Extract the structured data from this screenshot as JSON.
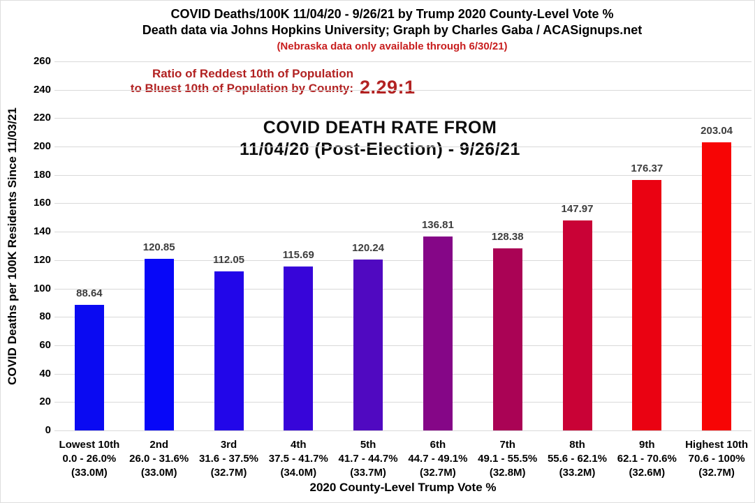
{
  "header": {
    "title_line1": "COVID Deaths/100K 11/04/20 - 9/26/21 by Trump 2020 County-Level Vote %",
    "title_line2": "Death data via Johns Hopkins University; Graph by Charles Gaba / ACASignups.net",
    "note": "(Nebraska data only available through 6/30/21)",
    "note_color": "#c81e1e"
  },
  "ratio": {
    "line1": "Ratio of Reddest 10th of Population",
    "line2": "to Bluest 10th of Population by County:",
    "value": "2.29:1",
    "color": "#b22222"
  },
  "chart_data": {
    "type": "bar",
    "title_line1": "COVID DEATH RATE FROM",
    "title_line2": "11/04/20 (Post-Election) - 9/26/21",
    "ylabel": "COVID Deaths per 100K Residents Since 11/03/21",
    "xlabel": "2020 County-Level Trump Vote %",
    "ylim": [
      0,
      260
    ],
    "ytick_step": 20,
    "grid": true,
    "grid_color": "#d9d9d9",
    "legend": "none",
    "categories": [
      [
        "Lowest 10th",
        "0.0 - 26.0%",
        "(33.0M)"
      ],
      [
        "2nd",
        "26.0 - 31.6%",
        "(33.0M)"
      ],
      [
        "3rd",
        "31.6 - 37.5%",
        "(32.7M)"
      ],
      [
        "4th",
        "37.5 - 41.7%",
        "(34.0M)"
      ],
      [
        "5th",
        "41.7 - 44.7%",
        "(33.7M)"
      ],
      [
        "6th",
        "44.7 - 49.1%",
        "(32.7M)"
      ],
      [
        "7th",
        "49.1 - 55.5%",
        "(32.8M)"
      ],
      [
        "8th",
        "55.6 - 62.1%",
        "(33.2M)"
      ],
      [
        "9th",
        "62.1 - 70.6%",
        "(32.6M)"
      ],
      [
        "Highest 10th",
        "70.6 - 100%",
        "(32.7M)"
      ]
    ],
    "values": [
      88.64,
      120.85,
      112.05,
      115.69,
      120.24,
      136.81,
      128.38,
      147.97,
      176.37,
      203.04
    ],
    "value_labels": [
      "88.64",
      "120.85",
      "112.05",
      "115.69",
      "120.24",
      "136.81",
      "128.38",
      "147.97",
      "176.37",
      "203.04"
    ],
    "bar_colors": [
      "#0a0af2",
      "#0707f8",
      "#2206e9",
      "#3705d9",
      "#5009c1",
      "#850687",
      "#aa0355",
      "#c90236",
      "#ea0212",
      "#f70505"
    ],
    "value_label_color": "#3d3d3d"
  }
}
